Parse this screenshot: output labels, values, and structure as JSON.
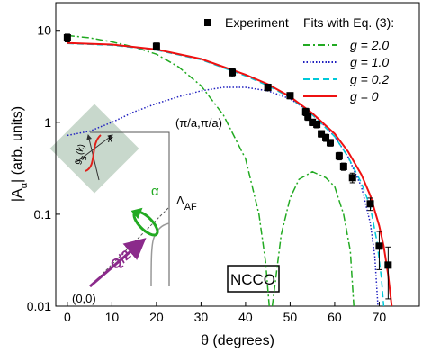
{
  "chart_data": {
    "type": "line",
    "log_y": true,
    "xlabel": "θ (degrees)",
    "ylabel": [
      "|A",
      "α",
      "| (arb. units)"
    ],
    "xlim": [
      -2.6,
      79
    ],
    "ylim": [
      0.01,
      20
    ],
    "xticks": [
      0,
      10,
      20,
      30,
      40,
      50,
      60,
      70
    ],
    "yticks": [
      0.01,
      0.1,
      1,
      10
    ],
    "legend_title": "Fits with Eq. (3):",
    "legend": "upper right",
    "experiment": {
      "name": "Experiment",
      "color": "#000000",
      "x": [
        0,
        20,
        37,
        45,
        50,
        53.5,
        54,
        55,
        56,
        57,
        58,
        59,
        61,
        62,
        64,
        68,
        70,
        72
      ],
      "values": [
        8.3,
        6.7,
        3.5,
        2.4,
        1.95,
        1.3,
        1.15,
        1.0,
        0.95,
        0.75,
        0.68,
        0.6,
        0.43,
        0.33,
        0.25,
        0.13,
        0.045,
        0.028
      ],
      "errors": [
        0.8,
        0.6,
        0.35,
        0.2,
        0.15,
        0.12,
        0.1,
        0.08,
        0.08,
        0.06,
        0.06,
        0.05,
        0.04,
        0.03,
        0.03,
        0.02,
        0.02,
        0.016
      ]
    },
    "series": [
      {
        "name": "g = 2.0",
        "color": "#22aa22",
        "dash": "dashdot",
        "x": [
          0,
          5,
          10,
          15,
          20,
          25,
          30,
          35,
          40,
          43,
          44.5,
          45.3,
          null,
          46,
          48,
          50,
          52,
          55,
          58,
          60,
          62,
          63.5,
          64.3
        ],
        "values": [
          8.8,
          8.3,
          7.5,
          6.6,
          5.5,
          4.0,
          2.5,
          1.2,
          0.4,
          0.1,
          0.03,
          0.01,
          null,
          0.01,
          0.06,
          0.15,
          0.24,
          0.29,
          0.25,
          0.2,
          0.1,
          0.04,
          0.01
        ]
      },
      {
        "name": "g = 1.0",
        "color": "#1f1fbf",
        "dash": "dot",
        "x": [
          0,
          5,
          10,
          15,
          20,
          25,
          30,
          35,
          40,
          45,
          50,
          55,
          60,
          63,
          66,
          68,
          69,
          69.7
        ],
        "values": [
          0.72,
          0.8,
          1.0,
          1.3,
          1.6,
          1.9,
          2.2,
          2.4,
          2.4,
          2.2,
          1.8,
          1.25,
          0.7,
          0.42,
          0.2,
          0.08,
          0.035,
          0.01
        ]
      },
      {
        "name": "g = 0.2",
        "color": "#00c8d8",
        "dash": "dash",
        "x": [
          0,
          10,
          20,
          30,
          40,
          45,
          50,
          55,
          60,
          63,
          66,
          68,
          69.5,
          70.5,
          71
        ],
        "values": [
          7.2,
          6.9,
          6.1,
          4.8,
          3.2,
          2.5,
          1.85,
          1.2,
          0.7,
          0.42,
          0.22,
          0.12,
          0.05,
          0.02,
          0.01
        ]
      },
      {
        "name": "g = 0",
        "color": "#ee1111",
        "dash": "solid",
        "x": [
          0,
          10,
          20,
          30,
          40,
          45,
          50,
          55,
          60,
          63,
          66,
          68,
          70,
          71,
          72,
          72.8
        ],
        "values": [
          7.3,
          7.0,
          6.2,
          4.9,
          3.3,
          2.6,
          1.9,
          1.25,
          0.75,
          0.48,
          0.27,
          0.16,
          0.075,
          0.045,
          0.022,
          0.01
        ]
      }
    ],
    "annotations": {
      "corner": "(π/a,π/a)",
      "origin": "(0,0)",
      "alpha": "α",
      "delta": [
        "Δ",
        "AF"
      ],
      "q": "Q/2",
      "gs": [
        "g",
        "s",
        "(k)"
      ],
      "k": "k",
      "sample": "NCCO"
    }
  }
}
